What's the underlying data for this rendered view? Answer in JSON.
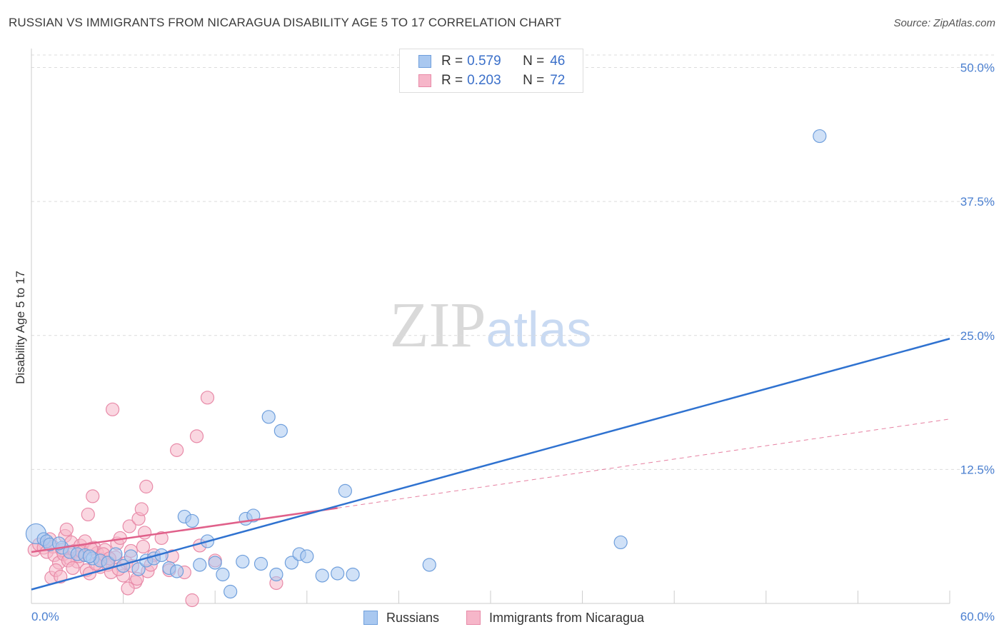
{
  "title": "RUSSIAN VS IMMIGRANTS FROM NICARAGUA DISABILITY AGE 5 TO 17 CORRELATION CHART",
  "source": "Source: ZipAtlas.com",
  "watermark": {
    "part1": "ZIP",
    "part2": "atlas"
  },
  "colors": {
    "blue_fill": "#a9c8f0",
    "blue_stroke": "#6f9fdc",
    "blue_line": "#2f72d0",
    "pink_fill": "#f6b6c9",
    "pink_stroke": "#e88aa8",
    "pink_line": "#e0608a",
    "grid": "#dcdcdc",
    "tick_text": "#4a7fd0"
  },
  "legend": {
    "rows": [
      {
        "r_label": "R =",
        "r_value": "0.579",
        "n_label": "N =",
        "n_value": "46"
      },
      {
        "r_label": "R =",
        "r_value": "0.203",
        "n_label": "N =",
        "n_value": "72"
      }
    ]
  },
  "bottom_legend": [
    "Russians",
    "Immigrants from Nicaragua"
  ],
  "chart_data": {
    "type": "scatter",
    "title": "RUSSIAN VS IMMIGRANTS FROM NICARAGUA DISABILITY AGE 5 TO 17 CORRELATION CHART",
    "xlabel": "",
    "ylabel": "Disability Age 5 to 17",
    "xlim": [
      0,
      60
    ],
    "ylim": [
      0,
      51.5
    ],
    "x_tick_labels": [
      "0.0%",
      "60.0%"
    ],
    "y_ticks": [
      12.5,
      25.0,
      37.5,
      50.0
    ],
    "y_tick_labels": [
      "12.5%",
      "25.0%",
      "37.5%",
      "50.0%"
    ],
    "series": [
      {
        "name": "Russians",
        "points": [
          [
            0.3,
            6.5
          ],
          [
            0.8,
            6.0
          ],
          [
            1.0,
            5.8
          ],
          [
            1.2,
            5.5
          ],
          [
            2.0,
            5.2
          ],
          [
            2.5,
            4.8
          ],
          [
            3.0,
            4.6
          ],
          [
            3.5,
            4.5
          ],
          [
            4.0,
            4.2
          ],
          [
            4.5,
            4.0
          ],
          [
            5.0,
            3.8
          ],
          [
            5.5,
            4.6
          ],
          [
            6.0,
            3.5
          ],
          [
            6.5,
            4.4
          ],
          [
            7.0,
            3.2
          ],
          [
            7.5,
            4.0
          ],
          [
            8.0,
            4.2
          ],
          [
            8.5,
            4.5
          ],
          [
            9.0,
            3.3
          ],
          [
            9.5,
            3.0
          ],
          [
            10.0,
            8.1
          ],
          [
            10.5,
            7.7
          ],
          [
            11.0,
            3.6
          ],
          [
            11.5,
            5.8
          ],
          [
            12.0,
            3.8
          ],
          [
            12.5,
            2.7
          ],
          [
            13.0,
            1.1
          ],
          [
            13.8,
            3.9
          ],
          [
            14.0,
            7.9
          ],
          [
            14.5,
            8.2
          ],
          [
            15.0,
            3.7
          ],
          [
            15.5,
            17.4
          ],
          [
            16.0,
            2.7
          ],
          [
            16.3,
            16.1
          ],
          [
            17.0,
            3.8
          ],
          [
            17.5,
            4.6
          ],
          [
            18.0,
            4.4
          ],
          [
            19.0,
            2.6
          ],
          [
            20.0,
            2.8
          ],
          [
            20.5,
            10.5
          ],
          [
            21.0,
            2.7
          ],
          [
            26.0,
            3.6
          ],
          [
            38.5,
            5.7
          ],
          [
            51.5,
            43.6
          ],
          [
            1.8,
            5.6
          ],
          [
            3.8,
            4.4
          ]
        ],
        "trend": {
          "x": [
            0,
            60
          ],
          "y": [
            1.3,
            24.7
          ]
        }
      },
      {
        "name": "Immigrants from Nicaragua",
        "points": [
          [
            0.2,
            5.0
          ],
          [
            0.5,
            5.5
          ],
          [
            0.8,
            5.2
          ],
          [
            1.0,
            4.8
          ],
          [
            1.2,
            6.0
          ],
          [
            1.4,
            5.3
          ],
          [
            1.5,
            4.5
          ],
          [
            1.8,
            3.8
          ],
          [
            2.0,
            5.0
          ],
          [
            2.1,
            4.6
          ],
          [
            2.2,
            6.3
          ],
          [
            2.3,
            6.9
          ],
          [
            2.5,
            4.2
          ],
          [
            2.6,
            5.7
          ],
          [
            2.8,
            4.9
          ],
          [
            3.0,
            3.9
          ],
          [
            3.1,
            4.4
          ],
          [
            3.2,
            5.4
          ],
          [
            3.5,
            5.8
          ],
          [
            3.6,
            3.1
          ],
          [
            3.7,
            8.3
          ],
          [
            3.8,
            2.8
          ],
          [
            4.0,
            10.0
          ],
          [
            4.1,
            5.2
          ],
          [
            4.3,
            4.7
          ],
          [
            4.5,
            3.4
          ],
          [
            4.6,
            4.1
          ],
          [
            4.8,
            5.0
          ],
          [
            5.0,
            3.6
          ],
          [
            5.2,
            2.9
          ],
          [
            5.3,
            18.1
          ],
          [
            5.5,
            4.3
          ],
          [
            5.6,
            5.6
          ],
          [
            5.8,
            6.1
          ],
          [
            6.0,
            2.6
          ],
          [
            6.2,
            3.8
          ],
          [
            6.4,
            7.2
          ],
          [
            6.5,
            4.9
          ],
          [
            6.6,
            3.5
          ],
          [
            6.8,
            2.0
          ],
          [
            7.0,
            7.9
          ],
          [
            7.2,
            8.8
          ],
          [
            7.3,
            5.3
          ],
          [
            7.4,
            6.6
          ],
          [
            7.5,
            10.9
          ],
          [
            7.6,
            3.0
          ],
          [
            8.0,
            4.5
          ],
          [
            8.5,
            6.1
          ],
          [
            9.0,
            3.1
          ],
          [
            9.5,
            14.3
          ],
          [
            10.0,
            2.9
          ],
          [
            10.5,
            0.3
          ],
          [
            10.8,
            15.6
          ],
          [
            11.0,
            5.4
          ],
          [
            11.5,
            19.2
          ],
          [
            12.0,
            4.0
          ],
          [
            1.3,
            2.4
          ],
          [
            1.6,
            3.1
          ],
          [
            1.9,
            2.5
          ],
          [
            2.4,
            4.0
          ],
          [
            2.7,
            3.3
          ],
          [
            3.3,
            4.8
          ],
          [
            3.9,
            5.1
          ],
          [
            4.2,
            3.7
          ],
          [
            4.7,
            4.6
          ],
          [
            5.1,
            4.2
          ],
          [
            5.7,
            3.2
          ],
          [
            6.3,
            1.4
          ],
          [
            6.9,
            2.3
          ],
          [
            7.8,
            3.6
          ],
          [
            9.2,
            4.4
          ],
          [
            16.0,
            1.9
          ]
        ],
        "trend": {
          "x": [
            0,
            20
          ],
          "y": [
            4.8,
            8.9
          ]
        },
        "trend_extension": {
          "x": [
            20,
            60
          ],
          "y": [
            8.9,
            17.2
          ]
        }
      }
    ]
  }
}
